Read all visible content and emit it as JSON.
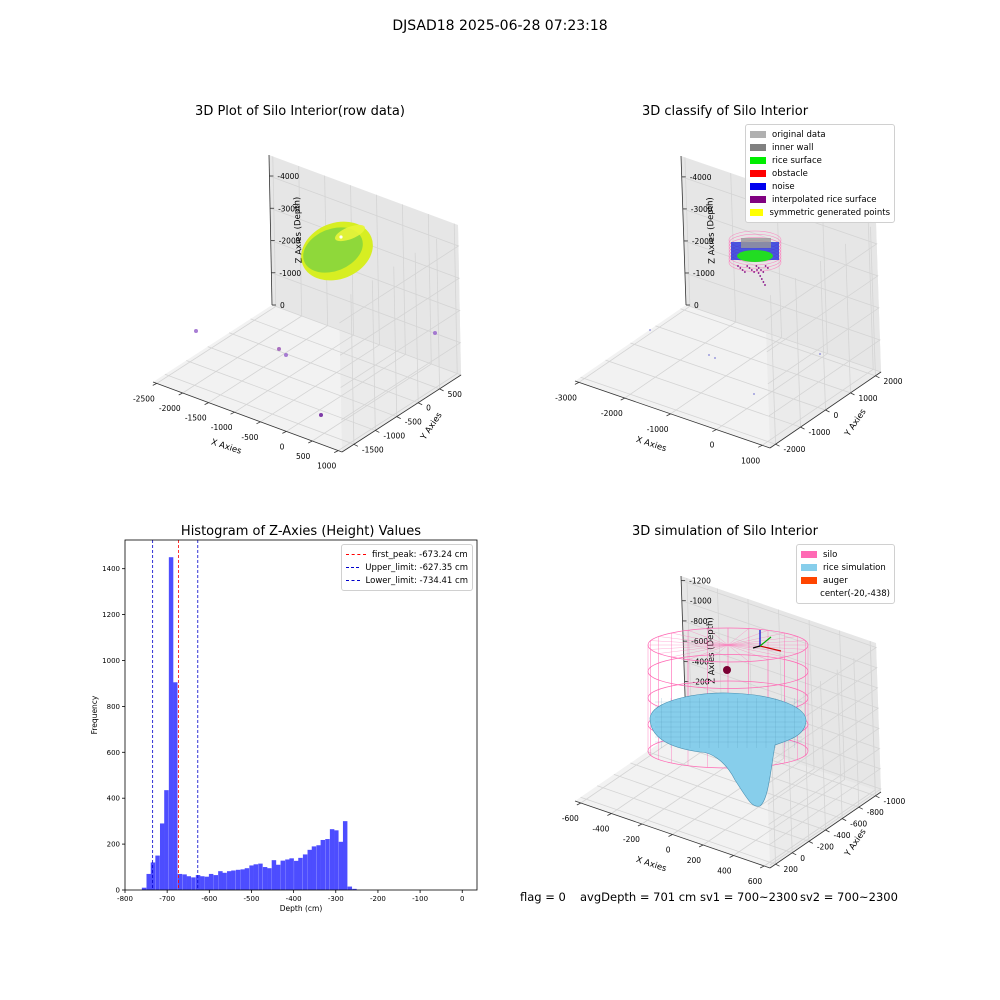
{
  "suptitle": "DJSAD18 2025-06-28 07:23:18",
  "footer": {
    "flag": "flag = 0",
    "avg_depth": "avgDepth = 701 cm",
    "sv1": "sv1 = 700~2300",
    "sv2": "sv2 = 700~2300"
  },
  "colors": {
    "hist_bar": "#4d4dff",
    "first_peak": "#ff0000",
    "limit": "#0000cc",
    "silo": "#ff69b4",
    "rice_sim": "#87ceeb",
    "auger": "#ff4500",
    "rice_surface": "#22dd22",
    "noise": "#0000ff"
  },
  "chart_data": [
    {
      "type": "scatter3d",
      "title": "3D Plot of Silo Interior(row data)",
      "xlabel": "X Axies",
      "ylabel": "Y Axies",
      "zlabel": "Z Axies (Depth)",
      "x_ticks": [
        "-2500",
        "-2000",
        "-1500",
        "-1000",
        "-500",
        "0",
        "500",
        "1000"
      ],
      "y_ticks": [
        "-1500",
        "-1000",
        "-500",
        "0",
        "500"
      ],
      "z_ticks": [
        "0",
        "-1000",
        "-2000",
        "-3000",
        "-4000"
      ]
    },
    {
      "type": "scatter3d",
      "title": "3D classify of Silo Interior",
      "xlabel": "X Axies",
      "ylabel": "Y Axies",
      "zlabel": "Z Axies (Depth)",
      "x_ticks": [
        "-3000",
        "-2000",
        "-1000",
        "0",
        "1000"
      ],
      "y_ticks": [
        "-2000",
        "-1000",
        "0",
        "1000",
        "2000"
      ],
      "z_ticks": [
        "0",
        "-1000",
        "-2000",
        "-3000",
        "-4000"
      ],
      "legend": [
        {
          "label": "original data",
          "color": "#b0b0b0"
        },
        {
          "label": "inner wall",
          "color": "#808080"
        },
        {
          "label": "rice surface",
          "color": "#00ee00"
        },
        {
          "label": "obstacle",
          "color": "#ff0000"
        },
        {
          "label": "noise",
          "color": "#0000ee"
        },
        {
          "label": "interpolated rice surface",
          "color": "#800080"
        },
        {
          "label": "symmetric generated points",
          "color": "#ffff00"
        }
      ]
    },
    {
      "type": "bar",
      "title": "Histogram of Z-Axies (Height) Values",
      "xlabel": "Depth (cm)",
      "ylabel": "Frequency",
      "xlim": [
        -800,
        35
      ],
      "ylim": [
        0,
        1525
      ],
      "bin_width": 10.6,
      "x_ticks": [
        -800,
        -700,
        -600,
        -500,
        -400,
        -300,
        -200,
        -100,
        0
      ],
      "y_ticks": [
        0,
        200,
        400,
        600,
        800,
        1000,
        1200,
        1400
      ],
      "bins": [
        {
          "x": -760,
          "y": 10
        },
        {
          "x": -749,
          "y": 70
        },
        {
          "x": -739,
          "y": 120
        },
        {
          "x": -728,
          "y": 150
        },
        {
          "x": -717,
          "y": 290
        },
        {
          "x": -707,
          "y": 435
        },
        {
          "x": -696,
          "y": 1450
        },
        {
          "x": -686,
          "y": 905
        },
        {
          "x": -675,
          "y": 70
        },
        {
          "x": -664,
          "y": 68
        },
        {
          "x": -654,
          "y": 60
        },
        {
          "x": -643,
          "y": 55
        },
        {
          "x": -632,
          "y": 65
        },
        {
          "x": -622,
          "y": 60
        },
        {
          "x": -611,
          "y": 58
        },
        {
          "x": -601,
          "y": 70
        },
        {
          "x": -590,
          "y": 65
        },
        {
          "x": -579,
          "y": 82
        },
        {
          "x": -569,
          "y": 75
        },
        {
          "x": -558,
          "y": 82
        },
        {
          "x": -548,
          "y": 85
        },
        {
          "x": -537,
          "y": 88
        },
        {
          "x": -526,
          "y": 90
        },
        {
          "x": -516,
          "y": 95
        },
        {
          "x": -505,
          "y": 107
        },
        {
          "x": -495,
          "y": 112
        },
        {
          "x": -484,
          "y": 115
        },
        {
          "x": -473,
          "y": 100
        },
        {
          "x": -463,
          "y": 95
        },
        {
          "x": -452,
          "y": 130
        },
        {
          "x": -442,
          "y": 110
        },
        {
          "x": -431,
          "y": 128
        },
        {
          "x": -420,
          "y": 133
        },
        {
          "x": -410,
          "y": 138
        },
        {
          "x": -399,
          "y": 127
        },
        {
          "x": -389,
          "y": 140
        },
        {
          "x": -378,
          "y": 155
        },
        {
          "x": -367,
          "y": 175
        },
        {
          "x": -357,
          "y": 190
        },
        {
          "x": -346,
          "y": 195
        },
        {
          "x": -336,
          "y": 218
        },
        {
          "x": -325,
          "y": 222
        },
        {
          "x": -314,
          "y": 265
        },
        {
          "x": -304,
          "y": 260
        },
        {
          "x": -293,
          "y": 210
        },
        {
          "x": -283,
          "y": 300
        },
        {
          "x": -272,
          "y": 15
        },
        {
          "x": -261,
          "y": 5
        }
      ],
      "lines": [
        {
          "label": "first_peak: -673.24 cm",
          "x": -673.24,
          "color": "#ff0000"
        },
        {
          "label": "Upper_limit: -627.35 cm",
          "x": -627.35,
          "color": "#0000cc"
        },
        {
          "label": "Lower_limit: -734.41 cm",
          "x": -734.41,
          "color": "#0000cc"
        }
      ]
    },
    {
      "type": "surface3d",
      "title": "3D simulation of Silo Interior",
      "xlabel": "X Axies",
      "ylabel": "Y Axies",
      "zlabel": "Z Axies (Depth)",
      "x_ticks": [
        "-600",
        "-400",
        "-200",
        "0",
        "200",
        "400",
        "600"
      ],
      "y_ticks": [
        "200",
        "0",
        "-200",
        "-400",
        "-600",
        "-800",
        "-1000"
      ],
      "z_ticks": [
        "200",
        "0",
        "-200",
        "-400",
        "-600",
        "-800",
        "-1000",
        "-1200"
      ],
      "legend": [
        {
          "label": "silo",
          "color": "#ff69b4"
        },
        {
          "label": "rice simulation",
          "color": "#87ceeb"
        },
        {
          "label": "auger",
          "color": "#ff4500"
        },
        {
          "label": "center(-20,-438)",
          "color": ""
        }
      ]
    }
  ]
}
